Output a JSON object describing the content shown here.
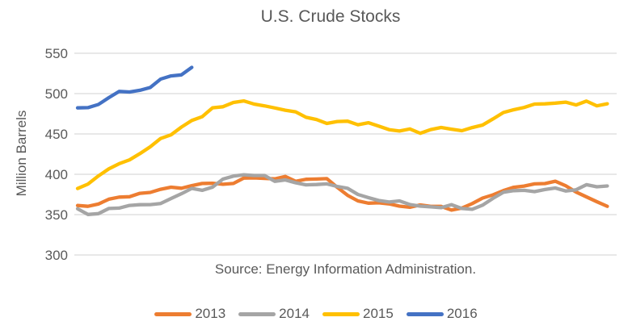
{
  "title": "U.S. Crude Stocks",
  "source_note": "Source: Energy Information Administration.",
  "colors": {
    "text": "#595959",
    "gridline": "#D9D9D9",
    "background": "#FFFFFF",
    "series_2013": "#ED7D31",
    "series_2014": "#A5A5A5",
    "series_2015": "#FFC000",
    "series_2016": "#4472C4"
  },
  "chart_data": {
    "type": "line",
    "title": "U.S. Crude Stocks",
    "xlabel": "",
    "ylabel": "Million Barrels",
    "ylim": [
      300,
      550
    ],
    "y_ticks": [
      550,
      500,
      450,
      400,
      350,
      300
    ],
    "grid": "horizontal gridlines only",
    "legend_position": "bottom",
    "x_axis": {
      "unit": "week of year",
      "tick_labels_visible": false
    },
    "series": [
      {
        "name": "2013",
        "color": "#ED7D31",
        "values": [
          361.3,
          360.3,
          363.1,
          369.1,
          371.7,
          372.2,
          376.4,
          377.5,
          381.4,
          384.0,
          382.7,
          385.9,
          388.6,
          388.9,
          387.6,
          388.6,
          395.3,
          395.5,
          394.9,
          394.3,
          397.3,
          391.3,
          393.8,
          394.1,
          394.6,
          383.8,
          373.9,
          367.0,
          364.2,
          364.6,
          363.3,
          360.5,
          359.1,
          362.0,
          360.2,
          360.2,
          355.6,
          358.1,
          363.7,
          370.5,
          374.5,
          379.8,
          383.9,
          385.4,
          388.1,
          388.5,
          391.4,
          385.8,
          378.0,
          372.0,
          366.0,
          360.3
        ]
      },
      {
        "name": "2014",
        "color": "#A5A5A5",
        "values": [
          357.3,
          350.2,
          351.2,
          357.6,
          358.1,
          361.4,
          362.3,
          362.4,
          363.8,
          369.9,
          375.9,
          382.5,
          380.1,
          384.1,
          394.1,
          397.7,
          399.4,
          398.5,
          398.5,
          391.3,
          393.0,
          389.5,
          386.9,
          387.3,
          388.1,
          384.9,
          382.6,
          375.0,
          371.1,
          367.5,
          365.6,
          367.0,
          362.5,
          360.5,
          359.6,
          358.6,
          362.3,
          357.6,
          356.6,
          361.7,
          370.2,
          377.7,
          379.7,
          380.1,
          378.5,
          381.1,
          383.0,
          379.3,
          380.8,
          387.1,
          384.5,
          385.5
        ]
      },
      {
        "name": "2015",
        "color": "#FFC000",
        "values": [
          382.4,
          387.8,
          397.9,
          406.7,
          413.1,
          417.9,
          425.6,
          434.1,
          444.4,
          448.9,
          458.5,
          466.7,
          471.4,
          482.4,
          483.7,
          489.0,
          490.9,
          487.0,
          484.8,
          482.2,
          479.4,
          477.4,
          470.6,
          467.9,
          463.0,
          465.4,
          465.8,
          461.4,
          463.9,
          459.7,
          455.3,
          453.6,
          456.2,
          450.8,
          455.4,
          458.0,
          455.9,
          454.0,
          457.9,
          461.0,
          468.6,
          476.6,
          480.0,
          482.8,
          487.0,
          487.3,
          488.2,
          489.4,
          485.9,
          490.7,
          484.8,
          487.4
        ]
      },
      {
        "name": "2016",
        "color": "#4472C4",
        "values": [
          482.3,
          482.6,
          486.5,
          494.9,
          502.7,
          502.0,
          504.1,
          507.6,
          518.0,
          521.9,
          523.2,
          532.5
        ]
      }
    ]
  }
}
